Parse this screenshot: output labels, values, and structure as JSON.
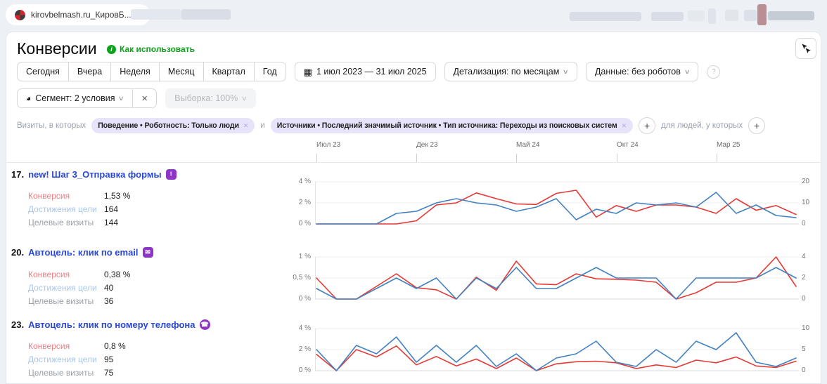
{
  "topbar": {
    "counter_name": "kirovbelmash.ru_КировБ..."
  },
  "header": {
    "title": "Конверсии",
    "help_link": "Как использовать"
  },
  "icons": {
    "chevron_down": "∨",
    "calendar": "▦",
    "segment_pie": "◕",
    "close": "✕",
    "question": "?",
    "info": "i",
    "plus": "+",
    "form_goal": "!",
    "email_goal": "✉",
    "phone_goal": "☎"
  },
  "toolbar": {
    "periods": [
      "Сегодня",
      "Вчера",
      "Неделя",
      "Месяц",
      "Квартал",
      "Год"
    ],
    "date_range": "1 июл 2023 — 31 июл 2025",
    "detalization": "Детализация: по месяцам",
    "data_mode": "Данные: без роботов",
    "segment": "Сегмент: 2 условия",
    "sampling": "Выборка: 100%"
  },
  "filters": {
    "prefix": "Визиты, в которых",
    "conjunction": "и",
    "chips": [
      "Поведение • Роботность: Только люди",
      "Источники • Последний значимый источник • Тип источника: Переходы из поисковых систем"
    ],
    "people_label": "для людей, у которых"
  },
  "x_axis": {
    "labels": [
      "Июл 23",
      "Дек 23",
      "Май 24",
      "Окт 24",
      "Мар 25"
    ]
  },
  "goals": [
    {
      "num": "17.",
      "title": "new! Шаг 3_Отправка формы",
      "metrics": {
        "conversion": {
          "label": "Конверсия",
          "value": "1,53 %"
        },
        "reaches": {
          "label": "Достижения цели",
          "value": "164"
        },
        "visits": {
          "label": "Целевые визиты",
          "value": "144"
        }
      }
    },
    {
      "num": "20.",
      "title": "Автоцель: клик по email",
      "metrics": {
        "conversion": {
          "label": "Конверсия",
          "value": "0,38 %"
        },
        "reaches": {
          "label": "Достижения цели",
          "value": "40"
        },
        "visits": {
          "label": "Целевые визиты",
          "value": "36"
        }
      }
    },
    {
      "num": "23.",
      "title": "Автоцель: клик по номеру телефона",
      "metrics": {
        "conversion": {
          "label": "Конверсия",
          "value": "0,8 %"
        },
        "reaches": {
          "label": "Достижения цели",
          "value": "95"
        },
        "visits": {
          "label": "Целевые визиты",
          "value": "75"
        }
      }
    }
  ],
  "chart_data": [
    {
      "type": "line",
      "title": "new! Шаг 3_Отправка формы",
      "x": [
        "Июл 23",
        "Авг 23",
        "Сен 23",
        "Окт 23",
        "Ноя 23",
        "Дек 23",
        "Янв 24",
        "Фев 24",
        "Мар 24",
        "Апр 24",
        "Май 24",
        "Июн 24",
        "Июл 24",
        "Авг 24",
        "Сен 24",
        "Окт 24",
        "Ноя 24",
        "Дек 24",
        "Янв 25",
        "Фев 25",
        "Мар 25",
        "Апр 25",
        "Май 25",
        "Июн 25",
        "Июл 25"
      ],
      "x_tick_indices": [
        0,
        5,
        10,
        15,
        20
      ],
      "left_axis": {
        "max": 4,
        "ticks": [
          "4 %",
          "2 %",
          "0 %"
        ]
      },
      "right_axis": {
        "max": 20,
        "ticks": [
          "20",
          "10",
          "0"
        ]
      },
      "series": [
        {
          "name": "Конверсия",
          "axis": "left",
          "color": "#e53935",
          "values": [
            0,
            0,
            0,
            0,
            0,
            0.3,
            1.8,
            2,
            2.95,
            2.4,
            1.9,
            1.85,
            2.9,
            3.2,
            0.65,
            1.75,
            1.2,
            1.8,
            1.8,
            1.6,
            1,
            2.4,
            1.3,
            1.75,
            0.9
          ]
        },
        {
          "name": "Достижения цели",
          "axis": "right",
          "color": "#4181c0",
          "values": [
            0,
            0,
            0,
            0,
            5,
            6,
            10,
            12,
            10,
            9,
            6,
            8,
            12,
            2,
            7,
            5,
            10,
            9,
            10,
            8,
            15,
            5,
            9,
            4,
            3
          ]
        }
      ]
    },
    {
      "type": "line",
      "title": "Автоцель: клик по email",
      "x": [
        "Июл 23",
        "Авг 23",
        "Сен 23",
        "Окт 23",
        "Ноя 23",
        "Дек 23",
        "Янв 24",
        "Фев 24",
        "Мар 24",
        "Апр 24",
        "Май 24",
        "Июн 24",
        "Июл 24",
        "Авг 24",
        "Сен 24",
        "Окт 24",
        "Ноя 24",
        "Дек 24",
        "Янв 25",
        "Фев 25",
        "Мар 25",
        "Апр 25",
        "Май 25",
        "Июн 25",
        "Июл 25"
      ],
      "x_tick_indices": [
        0,
        5,
        10,
        15,
        20
      ],
      "left_axis": {
        "max": 1,
        "ticks": [
          "1 %",
          "0,5 %",
          "0 %"
        ]
      },
      "right_axis": {
        "max": 4,
        "ticks": [
          "4",
          "2",
          "0"
        ]
      },
      "series": [
        {
          "name": "Конверсия",
          "axis": "left",
          "color": "#e53935",
          "values": [
            0.5,
            0,
            0,
            0.3,
            0.6,
            0.27,
            0.22,
            0,
            0.52,
            0.21,
            0.9,
            0.36,
            0.34,
            0.6,
            0.48,
            0.47,
            0.45,
            0.4,
            0,
            0.15,
            0.4,
            0.4,
            0.5,
            1,
            0.3
          ]
        },
        {
          "name": "Достижения цели",
          "axis": "right",
          "color": "#4181c0",
          "values": [
            1,
            0,
            0,
            1,
            2,
            1,
            2,
            0,
            2,
            1,
            3,
            1,
            1,
            2,
            3,
            2,
            2,
            2,
            0,
            2,
            2,
            2,
            2,
            3,
            2
          ]
        }
      ]
    },
    {
      "type": "line",
      "title": "Автоцель: клик по номеру телефона",
      "x": [
        "Июл 23",
        "Авг 23",
        "Сен 23",
        "Окт 23",
        "Ноя 23",
        "Дек 23",
        "Янв 24",
        "Фев 24",
        "Мар 24",
        "Апр 24",
        "Май 24",
        "Июн 24",
        "Июл 24",
        "Авг 24",
        "Сен 24",
        "Окт 24",
        "Ноя 24",
        "Дек 24",
        "Янв 25",
        "Фев 25",
        "Мар 25",
        "Апр 25",
        "Май 25",
        "Июн 25",
        "Июл 25"
      ],
      "x_tick_indices": [
        0,
        5,
        10,
        15,
        20
      ],
      "left_axis": {
        "max": 4,
        "ticks": [
          "4 %",
          "2 %",
          "0 %"
        ]
      },
      "right_axis": {
        "max": 10,
        "ticks": [
          "10",
          "5",
          "0"
        ]
      },
      "series": [
        {
          "name": "Конверсия",
          "axis": "left",
          "color": "#e53935",
          "values": [
            1.55,
            0,
            2,
            1.3,
            2.35,
            0.55,
            1.35,
            0.45,
            1.1,
            0.2,
            1.2,
            0,
            0.65,
            0.85,
            0.9,
            0.75,
            0.2,
            0.55,
            0.3,
            1,
            0.75,
            1.3,
            0.45,
            0.3,
            0.9
          ]
        },
        {
          "name": "Достижения цели",
          "axis": "right",
          "color": "#4181c0",
          "values": [
            5,
            0,
            6,
            4,
            8,
            2,
            6,
            2,
            6,
            1,
            4,
            0,
            3,
            4,
            7,
            2,
            1,
            5,
            2,
            7,
            5,
            9,
            2,
            1,
            3
          ]
        }
      ]
    }
  ],
  "colors": {
    "line_red": "#e53935",
    "line_blue": "#4181c0",
    "link_blue": "#2947d5",
    "green": "#0ba318",
    "purple": "#8e34c9"
  }
}
